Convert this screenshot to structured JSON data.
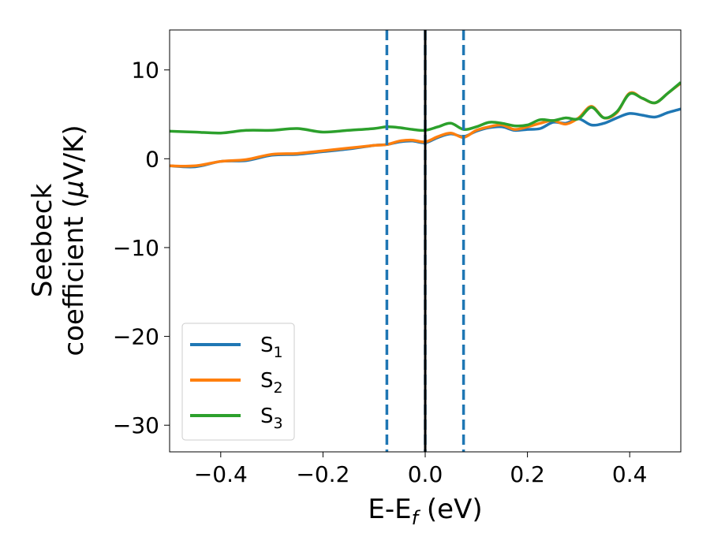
{
  "chart_data": {
    "type": "line",
    "xlabel": {
      "main": "E-E",
      "sub": "f",
      "suffix": " (eV)"
    },
    "ylabel": {
      "line1": "Seebeck",
      "line2_main": "coefficient  (",
      "line2_mu": "μ",
      "line2_suffix": "V/K)"
    },
    "xlim": [
      -0.5,
      0.5
    ],
    "ylim": [
      -33,
      14.5
    ],
    "x_ticks": [
      -0.4,
      -0.2,
      0.0,
      0.2,
      0.4
    ],
    "x_tick_labels": [
      "−0.4",
      "−0.2",
      "0.0",
      "0.2",
      "0.4"
    ],
    "y_ticks": [
      10,
      0,
      -10,
      -20,
      -30
    ],
    "y_tick_labels": [
      "10",
      "0",
      "−10",
      "−20",
      "−30"
    ],
    "grid": false,
    "legend_position": "lower-left",
    "vertical_lines": [
      {
        "x": -0.075,
        "style": "dashed",
        "color": "#1f77b4"
      },
      {
        "x": 0.0,
        "style": "dashed",
        "color": "#1f77b4"
      },
      {
        "x": 0.075,
        "style": "dashed",
        "color": "#1f77b4"
      },
      {
        "x": 0.0,
        "style": "solid",
        "color": "#000000"
      }
    ],
    "x": [
      -0.5,
      -0.45,
      -0.4,
      -0.35,
      -0.3,
      -0.25,
      -0.2,
      -0.15,
      -0.1,
      -0.075,
      -0.05,
      -0.025,
      0.0,
      0.025,
      0.05,
      0.075,
      0.1,
      0.125,
      0.15,
      0.175,
      0.2,
      0.225,
      0.25,
      0.275,
      0.3,
      0.325,
      0.35,
      0.375,
      0.4,
      0.425,
      0.45,
      0.475,
      0.5
    ],
    "series": [
      {
        "name_main": "S",
        "name_sub": "1",
        "color": "#1f77b4",
        "values": [
          -0.8,
          -0.9,
          -0.3,
          -0.2,
          0.4,
          0.5,
          0.8,
          1.1,
          1.5,
          1.6,
          1.9,
          2.0,
          1.8,
          2.4,
          2.8,
          2.5,
          3.1,
          3.5,
          3.6,
          3.2,
          3.3,
          3.4,
          4.1,
          4.0,
          4.5,
          3.8,
          4.0,
          4.6,
          5.1,
          4.9,
          4.7,
          5.2,
          5.6
        ]
      },
      {
        "name_main": "S",
        "name_sub": "2",
        "color": "#ff7f0e",
        "values": [
          -0.8,
          -0.8,
          -0.3,
          -0.1,
          0.5,
          0.6,
          0.9,
          1.2,
          1.5,
          1.6,
          2.0,
          2.1,
          1.9,
          2.5,
          2.9,
          2.4,
          3.2,
          3.6,
          3.8,
          3.3,
          3.6,
          4.0,
          4.3,
          3.9,
          4.6,
          5.9,
          4.6,
          5.2,
          7.4,
          6.8,
          6.3,
          7.4,
          8.5
        ]
      },
      {
        "name_main": "S",
        "name_sub": "3",
        "color": "#2ca02c",
        "values": [
          3.1,
          3.0,
          2.9,
          3.2,
          3.2,
          3.4,
          3.0,
          3.2,
          3.4,
          3.6,
          3.5,
          3.3,
          3.2,
          3.6,
          4.0,
          3.3,
          3.6,
          4.1,
          4.0,
          3.7,
          3.8,
          4.4,
          4.3,
          4.6,
          4.5,
          5.8,
          4.6,
          5.3,
          7.3,
          6.8,
          6.3,
          7.4,
          8.6
        ]
      }
    ]
  }
}
